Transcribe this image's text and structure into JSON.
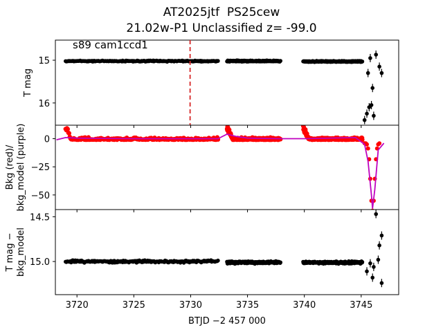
{
  "figure": {
    "title_line1": "AT2025jtf  PS25cew",
    "title_line2": "21.02w-P1 Unclassified z= -99.0",
    "annotation": "s89 cam1ccd1",
    "xlabel": "BTJD −2 457 000"
  },
  "colors": {
    "points": "#000000",
    "background_flux": "#ff0000",
    "background_model": "#bf00bf",
    "marker_line": "#d62728"
  },
  "chart_data": [
    {
      "type": "scatter",
      "panel": "top",
      "ylabel": "T mag",
      "y_inverted": true,
      "xlim": [
        3718.1,
        3748.3
      ],
      "ylim": [
        16.52,
        14.53
      ],
      "x_ticks": [
        3720,
        3725,
        3730,
        3735,
        3740,
        3745
      ],
      "y_ticks": [
        15,
        16
      ],
      "y_tick_labels": [
        "15",
        "16"
      ],
      "vertical_marker_x": 3729.95,
      "series": [
        {
          "values_description_free": true,
          "segments": [
            {
              "x_start": 3719.0,
              "x_end": 3732.4,
              "y_level": 15.02
            },
            {
              "x_start": 3733.2,
              "x_end": 3737.9,
              "y_level": 15.02
            },
            {
              "x_start": 3739.9,
              "x_end": 3745.1,
              "y_level": 15.03
            }
          ],
          "scattered_points": [
            {
              "x": 3745.3,
              "y": 16.4
            },
            {
              "x": 3745.5,
              "y": 16.25
            },
            {
              "x": 3745.7,
              "y": 16.1
            },
            {
              "x": 3745.9,
              "y": 16.05
            },
            {
              "x": 3746.1,
              "y": 16.3
            },
            {
              "x": 3745.6,
              "y": 15.3
            },
            {
              "x": 3746.0,
              "y": 15.65
            },
            {
              "x": 3746.3,
              "y": 14.87
            },
            {
              "x": 3746.6,
              "y": 15.15
            },
            {
              "x": 3746.8,
              "y": 15.3
            },
            {
              "x": 3745.8,
              "y": 14.95
            }
          ]
        }
      ]
    },
    {
      "type": "scatter",
      "panel": "middle",
      "ylabel": "Bkg (red)/\nbkg_model (purple)",
      "xlim": [
        3718.1,
        3748.3
      ],
      "ylim": [
        -63,
        12
      ],
      "y_ticks": [
        0,
        -25,
        -50
      ],
      "y_tick_labels": [
        "0",
        "−25",
        "−50"
      ],
      "series": [
        {
          "name": "Bkg",
          "segments": [
            {
              "x_start": 3719.0,
              "x_end": 3732.4,
              "y_level": 0
            },
            {
              "x_start": 3733.2,
              "x_end": 3737.9,
              "y_level": 0
            },
            {
              "x_start": 3739.9,
              "x_end": 3745.1,
              "y_level": 0
            }
          ],
          "dip": {
            "x": 3746.0,
            "y_min": -60
          }
        },
        {
          "name": "bkg_model",
          "x": [
            3718.2,
            3719.0,
            3720.0,
            3725.0,
            3730.0,
            3732.4,
            3733.2,
            3734.0,
            3735.0,
            3738.0,
            3740.0,
            3744.5,
            3745.3,
            3745.6,
            3745.9,
            3746.0,
            3746.2,
            3746.5,
            3747.0
          ],
          "y": [
            -1,
            1,
            0.5,
            0,
            0,
            0,
            4,
            2,
            0.5,
            0,
            0,
            1,
            -5,
            -20,
            -50,
            -62,
            -45,
            -10,
            -4
          ]
        }
      ]
    },
    {
      "type": "scatter",
      "panel": "bottom",
      "ylabel": "T mag −\nbkg_model",
      "y_inverted": true,
      "xlim": [
        3718.1,
        3748.3
      ],
      "ylim": [
        15.37,
        14.42
      ],
      "x_ticks": [
        3720,
        3725,
        3730,
        3735,
        3740,
        3745
      ],
      "x_tick_labels": [
        "3720",
        "3725",
        "3730",
        "3735",
        "3740",
        "3745"
      ],
      "y_ticks": [
        14.5,
        15.0
      ],
      "y_tick_labels": [
        "14.5",
        "15.0"
      ],
      "series": [
        {
          "segments": [
            {
              "x_start": 3719.0,
              "x_end": 3732.4,
              "y_level": 15.0
            },
            {
              "x_start": 3733.2,
              "x_end": 3737.9,
              "y_level": 15.01
            },
            {
              "x_start": 3739.9,
              "x_end": 3745.1,
              "y_level": 15.01
            }
          ],
          "scattered_points": [
            {
              "x": 3746.3,
              "y": 14.47
            },
            {
              "x": 3746.8,
              "y": 14.71
            },
            {
              "x": 3746.6,
              "y": 14.82
            },
            {
              "x": 3746.1,
              "y": 15.06
            },
            {
              "x": 3745.5,
              "y": 15.11
            },
            {
              "x": 3746.0,
              "y": 15.18
            },
            {
              "x": 3746.8,
              "y": 15.24
            },
            {
              "x": 3745.8,
              "y": 15.02
            },
            {
              "x": 3746.5,
              "y": 14.98
            }
          ]
        }
      ]
    }
  ]
}
